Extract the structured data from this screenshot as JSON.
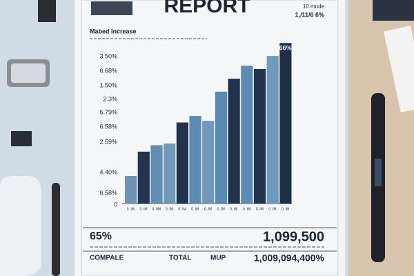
{
  "header": {
    "title": "REPORT",
    "note_top": "10 mnde",
    "note_bottom": "1,/11/6 6%"
  },
  "chart": {
    "subtitle": "Mabed Increase",
    "axis_labels": [
      "3.50%",
      "6.68%",
      "1.50%",
      "2.3%",
      "6.79%",
      "6.58%",
      "2.59%",
      "4.40%",
      "6.58%",
      "0"
    ],
    "bars": [
      {
        "value": 17,
        "color": "#6f93b4",
        "label": "0. IM"
      },
      {
        "value": 32,
        "color": "#23344f",
        "label": "0. IM"
      },
      {
        "value": 36,
        "color": "#5f8db3",
        "label": "0. 0M"
      },
      {
        "value": 37,
        "color": "#6f98bb",
        "label": "0. IM"
      },
      {
        "value": 50,
        "color": "#22334d",
        "label": "0. IM"
      },
      {
        "value": 54,
        "color": "#5b8ab3",
        "label": "0. IM"
      },
      {
        "value": 51,
        "color": "#7099bc",
        "label": "0. IM"
      },
      {
        "value": 69,
        "color": "#5a89b2",
        "label": "0. IM"
      },
      {
        "value": 77,
        "color": "#21324c",
        "label": "0. IM"
      },
      {
        "value": 85,
        "color": "#5d8cb4",
        "label": "0. IM"
      },
      {
        "value": 83,
        "color": "#23344f",
        "label": "0. IM"
      },
      {
        "value": 91,
        "color": "#6e98bc",
        "label": "0. IM"
      },
      {
        "value": 99,
        "color": "#1f2f48",
        "label": "0. IM"
      }
    ],
    "top_label": "66%"
  },
  "summary": {
    "left_value": "65%",
    "right_value": "1,099,500",
    "columns": [
      "COMPALE",
      "TOTAL",
      "MUP"
    ],
    "total": "1,009,094,400%"
  }
}
